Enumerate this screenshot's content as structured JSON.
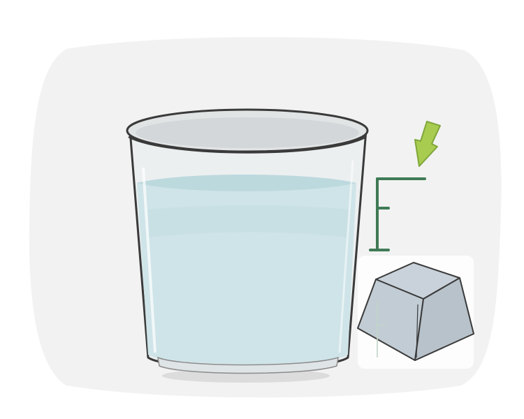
{
  "illustration": {
    "subject": "glass-of-water-with-keycap",
    "colors": {
      "background": "#ffffff",
      "backdrop_blob": "#f2f2f2",
      "glass_outline": "#3a3a3a",
      "glass_fill": "#e7ecee",
      "water": "#cfe4e8",
      "water_shade": "#b9d6dc",
      "keycap_top": "#c7d0d8",
      "keycap_side": "#b5bfc8",
      "arrow": "#a8cc4f",
      "arrow_shade": "#7fa63a",
      "letter_glyph": "#3f7a55"
    }
  }
}
